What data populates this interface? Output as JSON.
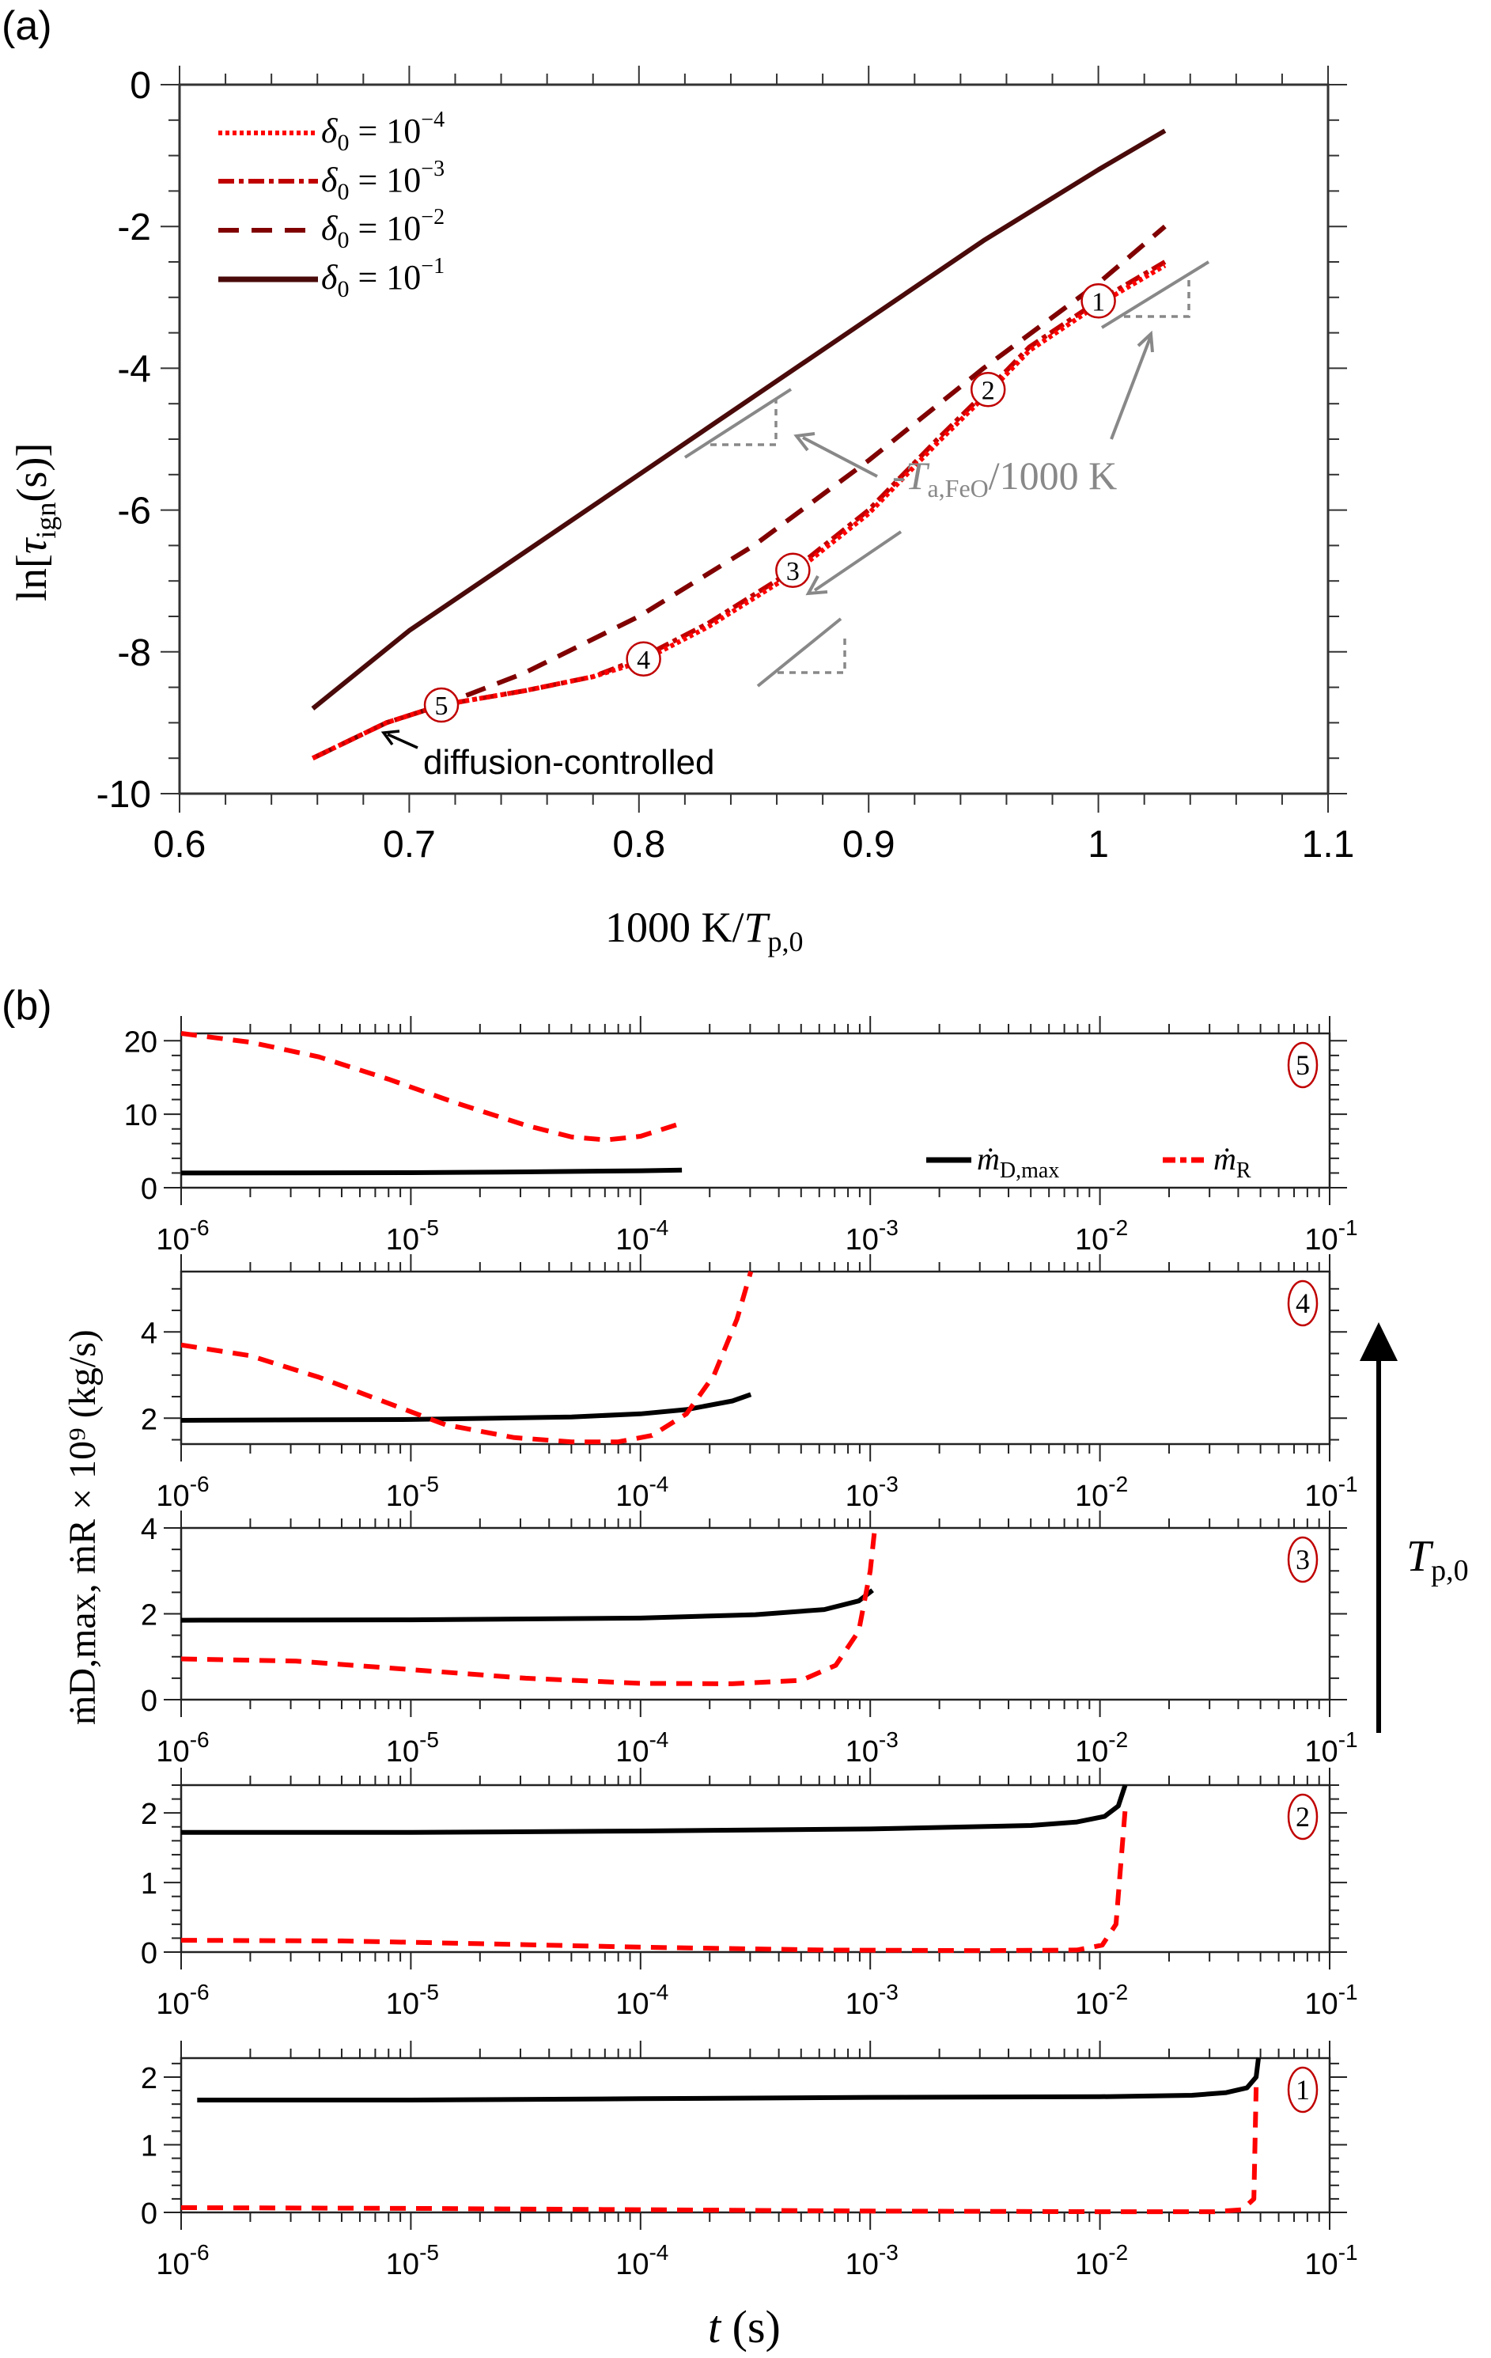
{
  "figure": {
    "panel_a_label": "(a)",
    "panel_b_label": "(b)"
  },
  "chart_data": [
    {
      "type": "line",
      "panel": "a",
      "title": "",
      "xlabel": "1000 K/T_p,0",
      "ylabel": "ln[τ_ign(s)]",
      "xlim": [
        0.6,
        1.1
      ],
      "ylim": [
        -10,
        0
      ],
      "xticks": [
        0.6,
        0.7,
        0.8,
        0.9,
        1,
        1.1
      ],
      "xtick_labels": [
        "0.6",
        "0.7",
        "0.8",
        "0.9",
        "1",
        "1.1"
      ],
      "yticks": [
        0,
        -2,
        -4,
        -6,
        -8,
        -10
      ],
      "ytick_labels": [
        "0",
        "-2",
        "-4",
        "-6",
        "-8",
        "-10"
      ],
      "grid": false,
      "legend_position": "upper left",
      "series": [
        {
          "name": "δ0 = 10^-4",
          "legend_label": "δ₀ = 10⁻⁴",
          "style": "dotted",
          "color": "#ff0000",
          "x": [
            0.658,
            0.69,
            0.714,
            0.75,
            0.78,
            0.8,
            0.83,
            0.867,
            0.9,
            0.93,
            0.952,
            0.97,
            1.0,
            1.029
          ],
          "y": [
            -9.5,
            -9.0,
            -8.75,
            -8.55,
            -8.35,
            -8.15,
            -7.65,
            -6.9,
            -6.05,
            -5.05,
            -4.35,
            -3.75,
            -3.1,
            -2.55
          ]
        },
        {
          "name": "δ0 = 10^-3",
          "legend_label": "δ₀ = 10⁻³",
          "style": "dashdot",
          "color": "#c00000",
          "x": [
            0.658,
            0.69,
            0.714,
            0.75,
            0.78,
            0.8,
            0.83,
            0.867,
            0.9,
            0.93,
            0.952,
            0.97,
            1.0,
            1.029
          ],
          "y": [
            -9.5,
            -9.0,
            -8.75,
            -8.55,
            -8.35,
            -8.1,
            -7.6,
            -6.85,
            -6.0,
            -5.0,
            -4.3,
            -3.7,
            -3.05,
            -2.5
          ]
        },
        {
          "name": "δ0 = 10^-2",
          "legend_label": "δ₀ = 10⁻²",
          "style": "dashed",
          "color": "#800000",
          "x": [
            0.658,
            0.69,
            0.714,
            0.75,
            0.8,
            0.85,
            0.9,
            0.95,
            1.0,
            1.029
          ],
          "y": [
            -9.5,
            -9.0,
            -8.75,
            -8.3,
            -7.5,
            -6.5,
            -5.3,
            -4.0,
            -2.8,
            -2.0
          ]
        },
        {
          "name": "δ0 = 10^-1",
          "legend_label": "δ₀ = 10⁻¹",
          "style": "solid",
          "color": "#4a0a0a",
          "x": [
            0.658,
            0.7,
            0.75,
            0.8,
            0.85,
            0.9,
            0.95,
            1.0,
            1.029
          ],
          "y": [
            -8.8,
            -7.7,
            -6.6,
            -5.5,
            -4.4,
            -3.3,
            -2.2,
            -1.2,
            -0.65
          ]
        }
      ],
      "markers": [
        {
          "label": "1",
          "x": 1.0,
          "y": -3.05
        },
        {
          "label": "2",
          "x": 0.952,
          "y": -4.3
        },
        {
          "label": "3",
          "x": 0.867,
          "y": -6.85
        },
        {
          "label": "4",
          "x": 0.802,
          "y": -8.1
        },
        {
          "label": "5",
          "x": 0.714,
          "y": -8.75
        }
      ],
      "annotations": [
        {
          "text": "diffusion-controlled",
          "arrow_to": [
            0.688,
            -9.15
          ]
        },
        {
          "text": "-T_a,FeO/1000 K",
          "display": "-Ta,FeO/1000 K",
          "color": "#888888"
        }
      ]
    },
    {
      "type": "line",
      "panel": "b",
      "xlabel": "t (s)",
      "ylabel": "ṁ_D,max, ṁ_R × 10^9 (kg/s)",
      "xscale": "log",
      "xlim": [
        1e-06,
        0.1
      ],
      "xtick_labels": [
        "10-6",
        "10-5",
        "10-4",
        "10-3",
        "10-2",
        "10-1"
      ],
      "legend": [
        "ṁ_D,max",
        "ṁ_R"
      ],
      "legend_position": "lower right of top subplot",
      "side_annotation": "T_p,0 (arrow up: increasing)",
      "subplots": [
        {
          "case": "5",
          "ylim": [
            0,
            21
          ],
          "yticks": [
            0,
            10,
            20
          ],
          "series": [
            {
              "name": "ṁ_D,max",
              "style": "solid",
              "color": "#000000",
              "logt": [
                -6,
                -5,
                -4.5,
                -4,
                -3.82
              ],
              "y": [
                2.0,
                2.05,
                2.15,
                2.3,
                2.4
              ]
            },
            {
              "name": "ṁ_R",
              "style": "dashed",
              "color": "#ff0000",
              "logt": [
                -6,
                -5.7,
                -5.4,
                -5.1,
                -4.8,
                -4.5,
                -4.3,
                -4.15,
                -4.0,
                -3.82
              ],
              "y": [
                21,
                19.8,
                17.8,
                14.8,
                11.5,
                8.5,
                6.9,
                6.5,
                7.0,
                8.8
              ]
            }
          ]
        },
        {
          "case": "4",
          "ylim": [
            1.4,
            5.4
          ],
          "yticks": [
            2,
            4
          ],
          "series": [
            {
              "name": "ṁ_D,max",
              "style": "solid",
              "color": "#000000",
              "logt": [
                -6,
                -5,
                -4.3,
                -4,
                -3.8,
                -3.6,
                -3.52
              ],
              "y": [
                1.95,
                1.97,
                2.03,
                2.1,
                2.2,
                2.4,
                2.55
              ]
            },
            {
              "name": "ṁ_R",
              "style": "dashed",
              "color": "#ff0000",
              "logt": [
                -6,
                -5.7,
                -5.4,
                -5.1,
                -4.85,
                -4.55,
                -4.3,
                -4.1,
                -3.95,
                -3.8,
                -3.68,
                -3.58,
                -3.52
              ],
              "y": [
                3.7,
                3.45,
                2.95,
                2.35,
                1.85,
                1.55,
                1.45,
                1.45,
                1.6,
                2.1,
                3.0,
                4.3,
                5.4
              ]
            }
          ]
        },
        {
          "case": "3",
          "ylim": [
            0,
            4
          ],
          "yticks": [
            0,
            2,
            4
          ],
          "series": [
            {
              "name": "ṁ_D,max",
              "style": "solid",
              "color": "#000000",
              "logt": [
                -6,
                -5,
                -4,
                -3.5,
                -3.2,
                -3.05,
                -2.99
              ],
              "y": [
                1.85,
                1.86,
                1.9,
                1.98,
                2.1,
                2.3,
                2.55
              ]
            },
            {
              "name": "ṁ_R",
              "style": "dashed",
              "color": "#ff0000",
              "logt": [
                -6,
                -5.5,
                -5,
                -4.5,
                -4,
                -3.6,
                -3.3,
                -3.15,
                -3.05,
                -3.0,
                -2.98
              ],
              "y": [
                0.95,
                0.9,
                0.7,
                0.5,
                0.38,
                0.37,
                0.45,
                0.8,
                1.6,
                3.0,
                4.0
              ]
            }
          ]
        },
        {
          "case": "2",
          "ylim": [
            0,
            2.4
          ],
          "yticks": [
            0,
            1,
            2
          ],
          "series": [
            {
              "name": "ṁ_D,max",
              "style": "solid",
              "color": "#000000",
              "logt": [
                -6,
                -5,
                -4,
                -3,
                -2.3,
                -2.1,
                -1.98,
                -1.92,
                -1.89
              ],
              "y": [
                1.72,
                1.72,
                1.74,
                1.77,
                1.82,
                1.87,
                1.95,
                2.1,
                2.4
              ]
            },
            {
              "name": "ṁ_R",
              "style": "dashed",
              "color": "#ff0000",
              "logt": [
                -6,
                -5.3,
                -4.7,
                -4,
                -3.2,
                -2.5,
                -2.1,
                -1.99,
                -1.93,
                -1.89
              ],
              "y": [
                0.17,
                0.16,
                0.12,
                0.07,
                0.03,
                0.02,
                0.03,
                0.1,
                0.4,
                2.05
              ]
            }
          ]
        },
        {
          "case": "1",
          "ylim": [
            0,
            2.28
          ],
          "yticks": [
            0,
            1,
            2
          ],
          "series": [
            {
              "name": "ṁ_D,max",
              "style": "solid",
              "color": "#000000",
              "logt": [
                -5.93,
                -5,
                -4,
                -3,
                -2,
                -1.6,
                -1.45,
                -1.36,
                -1.32,
                -1.31
              ],
              "y": [
                1.66,
                1.66,
                1.68,
                1.7,
                1.71,
                1.73,
                1.77,
                1.84,
                2.0,
                2.28
              ]
            },
            {
              "name": "ṁ_R",
              "style": "dashed",
              "color": "#ff0000",
              "logt": [
                -6,
                -5,
                -4,
                -3,
                -2,
                -1.5,
                -1.38,
                -1.33,
                -1.32
              ],
              "y": [
                0.07,
                0.06,
                0.04,
                0.02,
                0.01,
                0.01,
                0.04,
                0.2,
                1.85
              ]
            }
          ]
        }
      ]
    }
  ],
  "panel_a": {
    "xlabel_main": "1000 K/",
    "xlabel_var": "T",
    "xlabel_sub": "p,0",
    "ylabel_prefix": "ln[",
    "ylabel_var": "τ",
    "ylabel_sub": "ign",
    "ylabel_suffix": "(s)]",
    "legend": [
      {
        "sym": "δ",
        "sub": "0",
        "eq": " = 10",
        "exp": "−4"
      },
      {
        "sym": "δ",
        "sub": "0",
        "eq": " = 10",
        "exp": "−3"
      },
      {
        "sym": "δ",
        "sub": "0",
        "eq": " = 10",
        "exp": "−2"
      },
      {
        "sym": "δ",
        "sub": "0",
        "eq": " = 10",
        "exp": "−1"
      }
    ],
    "annotation_diffusion": "diffusion-controlled",
    "annotation_slope_prefix": "-",
    "annotation_slope_var": "T",
    "annotation_slope_sub": "a,FeO",
    "annotation_slope_suffix": "/1000 K"
  },
  "panel_b": {
    "xlabel_var": "t",
    "xlabel_unit": " (s)",
    "ylabel_text": "ṁD,max, ṁR × 10⁹ (kg/s)",
    "legend_d": {
      "base": "ṁ",
      "sub": "D,max"
    },
    "legend_r": {
      "base": "ṁ",
      "sub": "R"
    },
    "tp_label_var": "T",
    "tp_label_sub": "p,0"
  },
  "colors": {
    "delta_1e-4": "#ff0000",
    "delta_1e-3": "#c00000",
    "delta_1e-2": "#800000",
    "delta_1e-1": "#4a0a0a",
    "slope_gray": "#888888",
    "marker_ring": "#c00000",
    "mdot_d": "#000000",
    "mdot_r": "#ff0000"
  }
}
